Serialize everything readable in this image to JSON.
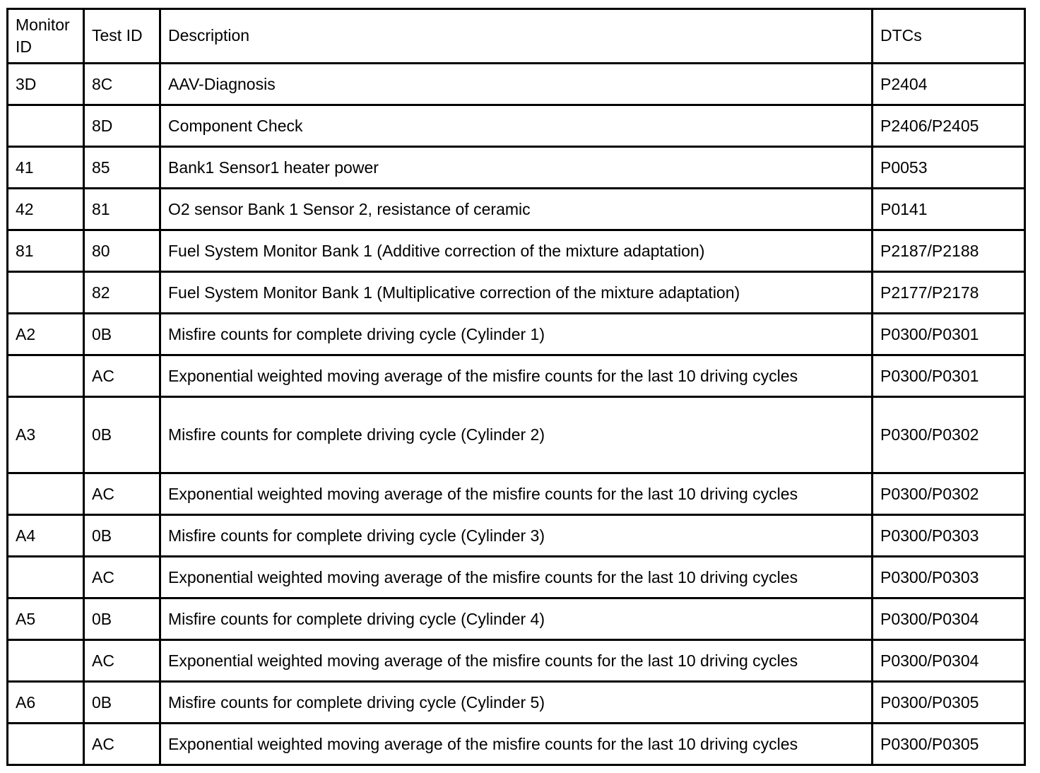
{
  "table": {
    "headers": {
      "monitor_id": "Monitor ID",
      "test_id": "Test ID",
      "description": "Description",
      "dtcs": "DTCs"
    },
    "rows": [
      {
        "monitor_id": "3D",
        "test_id": "8C",
        "description": "AAV-Diagnosis",
        "dtcs": "P2404"
      },
      {
        "monitor_id": "",
        "test_id": "8D",
        "description": "Component Check",
        "dtcs": "P2406/P2405"
      },
      {
        "monitor_id": "41",
        "test_id": "85",
        "description": "Bank1 Sensor1 heater power",
        "dtcs": "P0053"
      },
      {
        "monitor_id": "42",
        "test_id": "81",
        "description": "O2 sensor Bank 1 Sensor 2, resistance of ceramic",
        "dtcs": "P0141"
      },
      {
        "monitor_id": "81",
        "test_id": "80",
        "description": "Fuel System Monitor Bank 1 (Additive correction of the mixture adaptation)",
        "dtcs": "P2187/P2188"
      },
      {
        "monitor_id": "",
        "test_id": "82",
        "description": "Fuel System Monitor Bank 1 (Multiplicative correction of the mixture adaptation)",
        "dtcs": "P2177/P2178"
      },
      {
        "monitor_id": "A2",
        "test_id": "0B",
        "description": "Misfire counts for complete driving cycle (Cylinder 1)",
        "dtcs": "P0300/P0301"
      },
      {
        "monitor_id": "",
        "test_id": "AC",
        "description": "Exponential weighted moving average of the misfire counts for the last 10 driving cycles",
        "dtcs": "P0300/P0301"
      },
      {
        "monitor_id": "A3",
        "test_id": "0B",
        "description": "Misfire counts for complete driving cycle (Cylinder 2)",
        "dtcs": "P0300/P0302"
      },
      {
        "monitor_id": "",
        "test_id": "AC",
        "description": "Exponential weighted moving average of the misfire counts for the last 10 driving cycles",
        "dtcs": "P0300/P0302"
      },
      {
        "monitor_id": "A4",
        "test_id": "0B",
        "description": "Misfire counts for complete driving cycle (Cylinder 3)",
        "dtcs": "P0300/P0303"
      },
      {
        "monitor_id": "",
        "test_id": "AC",
        "description": "Exponential weighted moving average of the misfire counts for the last 10 driving cycles",
        "dtcs": "P0300/P0303"
      },
      {
        "monitor_id": "A5",
        "test_id": "0B",
        "description": "Misfire counts for complete driving cycle (Cylinder 4)",
        "dtcs": "P0300/P0304"
      },
      {
        "monitor_id": "",
        "test_id": "AC",
        "description": "Exponential weighted moving average of the misfire counts for the last 10 driving cycles",
        "dtcs": "P0300/P0304"
      },
      {
        "monitor_id": "A6",
        "test_id": "0B",
        "description": "Misfire counts for complete driving cycle (Cylinder 5)",
        "dtcs": "P0300/P0305"
      },
      {
        "monitor_id": "",
        "test_id": "AC",
        "description": "Exponential weighted moving average of the misfire counts for the last 10 driving cycles",
        "dtcs": "P0300/P0305"
      }
    ]
  }
}
